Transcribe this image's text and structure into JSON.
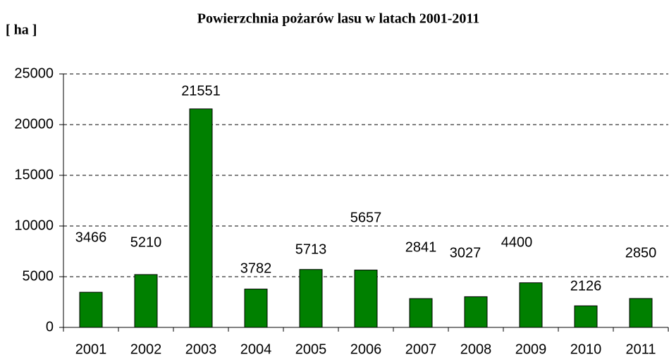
{
  "chart_data": {
    "type": "bar",
    "title": "Powierzchnia pożarów lasu w latach 2001-2011",
    "y_label": "[ ha ]",
    "categories": [
      "2001",
      "2002",
      "2003",
      "2004",
      "2005",
      "2006",
      "2007",
      "2008",
      "2009",
      "2010",
      "2011"
    ],
    "values": [
      3466,
      5210,
      21551,
      3782,
      5713,
      5657,
      2841,
      3027,
      4400,
      2126,
      2850
    ],
    "color": "#008000",
    "ylim": [
      0,
      25000
    ],
    "yticks": [
      0,
      5000,
      10000,
      15000,
      20000,
      25000
    ],
    "grid": true
  }
}
